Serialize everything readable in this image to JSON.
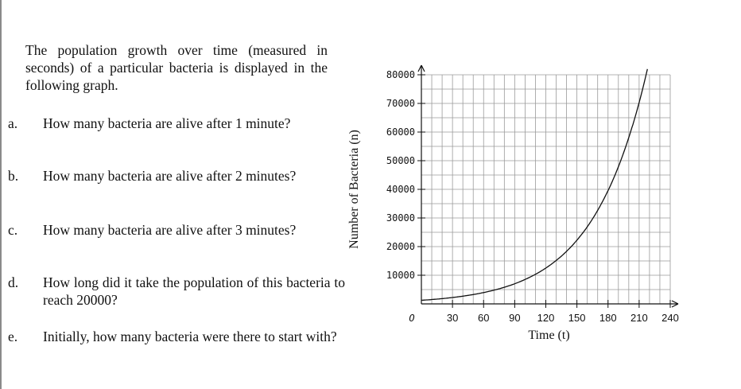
{
  "intro": "The population growth over time (measured in seconds) of a particular bacteria is displayed in the following graph.",
  "questions": [
    {
      "label": "a.",
      "text": "How many bacteria are alive after 1 minute?"
    },
    {
      "label": "b.",
      "text": "How many bacteria are alive after 2 minutes?"
    },
    {
      "label": "c.",
      "text": "How many bacteria are alive after 3 minutes?"
    },
    {
      "label": "d.",
      "text": "How long did it take the population of this bacteria to reach 20000?"
    },
    {
      "label": "e.",
      "text": "Initially, how many bacteria were there to start with?"
    }
  ],
  "chart_data": {
    "type": "line",
    "title": "",
    "xlabel": "Time (t)",
    "ylabel": "Number of Bacteria (n)",
    "origin_label": "O",
    "xlim": [
      0,
      240
    ],
    "ylim": [
      0,
      80000
    ],
    "x_ticks": [
      30,
      60,
      90,
      120,
      150,
      180,
      210,
      240
    ],
    "y_ticks": [
      10000,
      20000,
      30000,
      40000,
      50000,
      60000,
      70000,
      80000
    ],
    "grid": true,
    "series": [
      {
        "points": [
          [
            0,
            1250
          ],
          [
            30,
            2500
          ],
          [
            60,
            3300
          ],
          [
            90,
            5000
          ],
          [
            120,
            10000
          ],
          [
            150,
            20000
          ],
          [
            180,
            40000
          ],
          [
            210,
            72000
          ],
          [
            218,
            82000
          ]
        ]
      }
    ]
  }
}
